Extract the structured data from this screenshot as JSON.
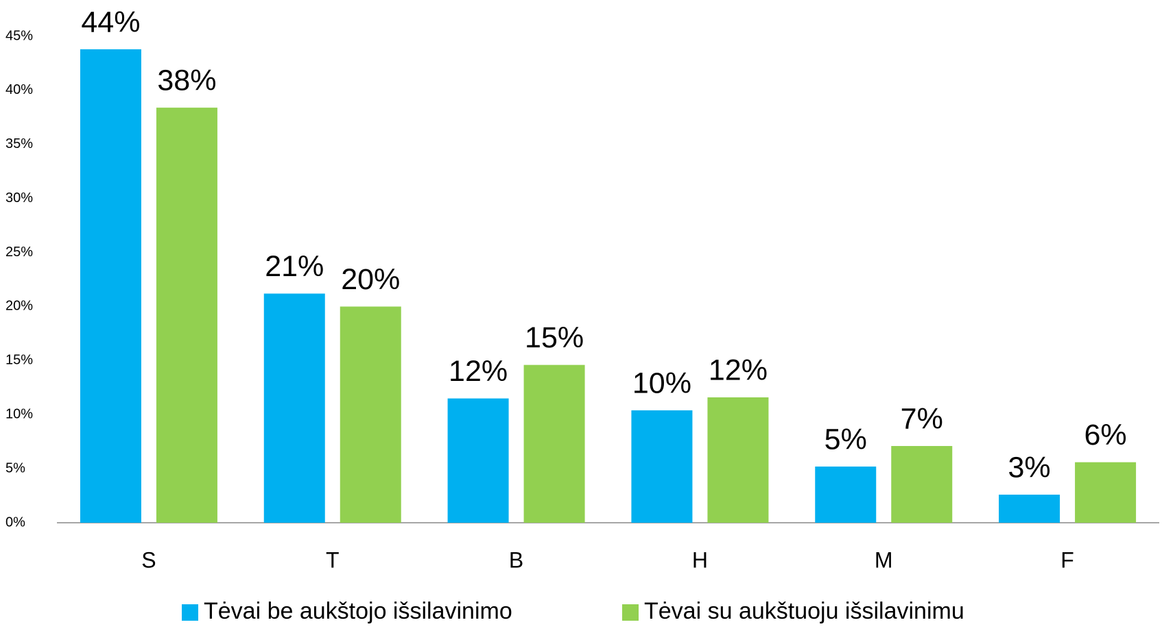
{
  "chart_data": {
    "type": "bar",
    "categories": [
      "S",
      "T",
      "B",
      "H",
      "M",
      "F"
    ],
    "series": [
      {
        "name": "Tėvai be aukštojo išsilavinimo",
        "color": "#00b0f0",
        "values": [
          43.8,
          21.2,
          11.5,
          10.4,
          5.2,
          2.6
        ],
        "value_labels": [
          "44%",
          "21%",
          "12%",
          "10%",
          "5%",
          "3%"
        ]
      },
      {
        "name": "Tėvai su aukštuoju išsilavinimu",
        "color": "#92d050",
        "values": [
          38.4,
          20.0,
          14.6,
          11.6,
          7.1,
          5.6
        ],
        "value_labels": [
          "38%",
          "20%",
          "15%",
          "12%",
          "7%",
          "6%"
        ]
      }
    ],
    "ylim": [
      0,
      45
    ],
    "yticks": [
      {
        "value": 0,
        "label": "0%"
      },
      {
        "value": 5,
        "label": "5%"
      },
      {
        "value": 10,
        "label": "10%"
      },
      {
        "value": 15,
        "label": "15%"
      },
      {
        "value": 20,
        "label": "20%"
      },
      {
        "value": 25,
        "label": "25%"
      },
      {
        "value": 30,
        "label": "30%"
      },
      {
        "value": 35,
        "label": "35%"
      },
      {
        "value": 40,
        "label": "40%"
      },
      {
        "value": 45,
        "label": "45%"
      }
    ],
    "grid": false,
    "legend": "bottom"
  }
}
